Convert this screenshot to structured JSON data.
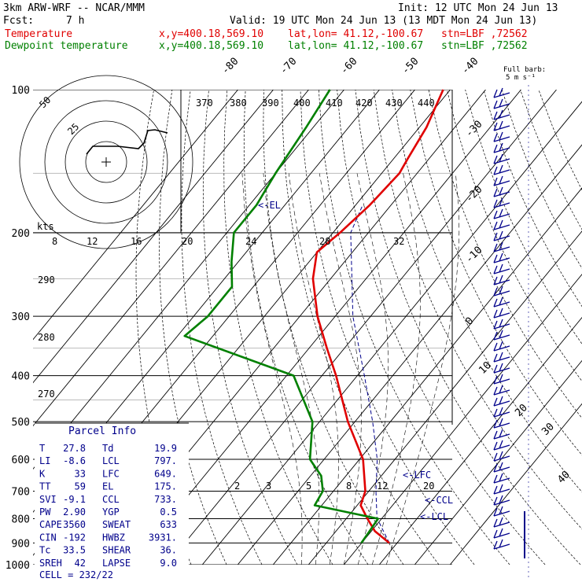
{
  "header": {
    "model": "3km ARW-WRF -- NCAR/MMM",
    "init": "Init: 12 UTC Mon 24 Jun 13",
    "fcst_label": "Fcst:",
    "fcst_value": "7 h",
    "valid": "Valid: 19 UTC Mon 24 Jun 13 (13 MDT Mon 24 Jun 13)"
  },
  "legend": {
    "temp_label": "Temperature",
    "dew_label": "Dewpoint temperature",
    "xy": "x,y=400.18,569.10",
    "latlon": "lat,lon= 41.12,-100.67",
    "stn": "stn=LBF ,72562",
    "colors": {
      "temperature": "#e00000",
      "dewpoint": "#008000",
      "parcel": "#00008b"
    }
  },
  "barb_label": {
    "line1": "Full barb:",
    "line2": "5 m s⁻¹"
  },
  "parcel_info": {
    "title": "Parcel Info",
    "rows": [
      [
        "T",
        "27.8",
        "Td",
        "19.9"
      ],
      [
        "LI",
        "-8.6",
        "LCL",
        "797."
      ],
      [
        "K",
        "33",
        "LFC",
        "649."
      ],
      [
        "TT",
        "59",
        "EL",
        "175."
      ],
      [
        "SVI",
        "-9.1",
        "CCL",
        "733."
      ],
      [
        "PW",
        "2.90",
        "YGP",
        "0.5"
      ],
      [
        "CAPE",
        "3560",
        "SWEAT",
        "633"
      ],
      [
        "CIN",
        "-192",
        "HWBZ",
        "3931."
      ],
      [
        "Tc",
        "33.5",
        "SHEAR",
        "36."
      ],
      [
        "SREH",
        "42",
        "LAPSE",
        "9.0"
      ]
    ],
    "cell_label": "CELL",
    "cell_value": "232/22"
  },
  "hodograph": {
    "units": "kts",
    "ring_labels": [
      "25",
      "50"
    ]
  },
  "chart_data": {
    "type": "line",
    "title": "",
    "ylabel": "",
    "y_scale": "log-pressure",
    "pressure_ticks": [
      "100",
      "200",
      "300",
      "400",
      "500",
      "600",
      "700",
      "800",
      "900",
      "1000"
    ],
    "isotherm_labels": [
      "-80",
      "-70",
      "-60",
      "-50",
      "-40",
      "-30",
      "-20",
      "-10",
      "0",
      "10",
      "20",
      "30",
      "40"
    ],
    "theta_labels": [
      "370",
      "380",
      "390",
      "400",
      "410",
      "420",
      "430",
      "440",
      "290",
      "280",
      "270"
    ],
    "mixing_ratio_labels": [
      "8",
      "12",
      "16",
      "20",
      "24",
      "28",
      "32"
    ],
    "mixing_ratio_low_labels": [
      "2",
      "3",
      "5",
      "8",
      "12",
      "20"
    ],
    "level_markers": [
      "<-EL",
      "<-LFC",
      "<-CCL",
      "<-LCL"
    ],
    "series": [
      {
        "name": "Temperature",
        "points": [
          [
            100,
            -62
          ],
          [
            120,
            -58
          ],
          [
            140,
            -56
          ],
          [
            150,
            -55
          ],
          [
            175,
            -56
          ],
          [
            200,
            -58
          ],
          [
            220,
            -60
          ],
          [
            250,
            -55
          ],
          [
            300,
            -45
          ],
          [
            350,
            -35
          ],
          [
            400,
            -26
          ],
          [
            500,
            -12
          ],
          [
            600,
            1
          ],
          [
            700,
            9
          ],
          [
            750,
            11
          ],
          [
            800,
            16
          ],
          [
            850,
            21
          ],
          [
            900,
            27.8
          ]
        ]
      },
      {
        "name": "Dewpoint temperature",
        "points": [
          [
            100,
            -94
          ],
          [
            120,
            -92
          ],
          [
            150,
            -90
          ],
          [
            175,
            -88
          ],
          [
            200,
            -88
          ],
          [
            230,
            -82
          ],
          [
            260,
            -76
          ],
          [
            300,
            -76
          ],
          [
            330,
            -78
          ],
          [
            400,
            -38
          ],
          [
            500,
            -22
          ],
          [
            600,
            -14
          ],
          [
            650,
            -7
          ],
          [
            700,
            -3
          ],
          [
            750,
            -2
          ],
          [
            800,
            19
          ],
          [
            850,
            19.5
          ],
          [
            900,
            19.9
          ]
        ]
      }
    ]
  }
}
